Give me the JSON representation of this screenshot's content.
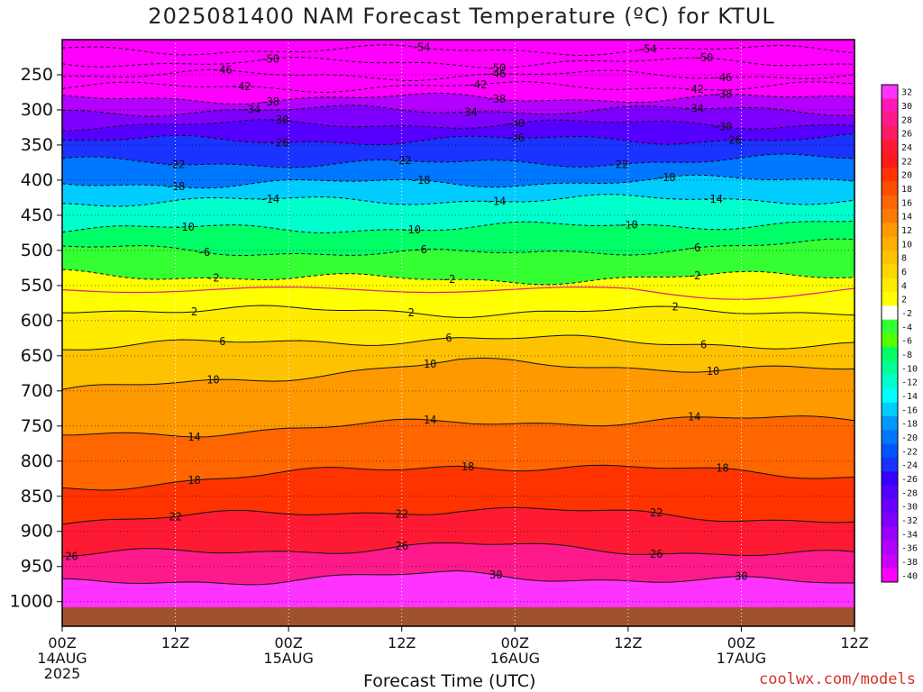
{
  "chart_data": {
    "type": "contour",
    "title": "2025081400 NAM Forecast Temperature (ºC) for KTUL",
    "xlabel": "Forecast Time (UTC)",
    "ylabel": "",
    "credit": "coolwx.com/models",
    "x_range_hours": [
      0,
      84
    ],
    "y_axis": "pressure (hPa)",
    "ylim": [
      1035,
      200
    ],
    "y_ticks": [
      250,
      300,
      350,
      400,
      450,
      500,
      550,
      600,
      650,
      700,
      750,
      800,
      850,
      900,
      950,
      1000
    ],
    "x_ticks": [
      {
        "hour": 0,
        "line1": "00Z",
        "line2": "14AUG",
        "line3": "2025"
      },
      {
        "hour": 12,
        "line1": "12Z",
        "line2": "",
        "line3": ""
      },
      {
        "hour": 24,
        "line1": "00Z",
        "line2": "15AUG",
        "line3": ""
      },
      {
        "hour": 36,
        "line1": "12Z",
        "line2": "",
        "line3": ""
      },
      {
        "hour": 48,
        "line1": "00Z",
        "line2": "16AUG",
        "line3": ""
      },
      {
        "hour": 60,
        "line1": "12Z",
        "line2": "",
        "line3": ""
      },
      {
        "hour": 72,
        "line1": "00Z",
        "line2": "17AUG",
        "line3": ""
      },
      {
        "hour": 84,
        "line1": "12Z",
        "line2": "",
        "line3": ""
      }
    ],
    "colorbar": {
      "labels": [
        "32",
        "30",
        "28",
        "26",
        "24",
        "22",
        "20",
        "18",
        "16",
        "14",
        "12",
        "10",
        "8",
        "6",
        "4",
        "2",
        "-2",
        "-4",
        "-6",
        "-8",
        "-10",
        "-12",
        "-14",
        "-16",
        "-18",
        "-20",
        "-22",
        "-24",
        "-26",
        "-28",
        "-30",
        "-32",
        "-34",
        "-36",
        "-38",
        "-40"
      ],
      "colors": [
        "#ff33ff",
        "#ff1ab3",
        "#ff1a8c",
        "#ff1a66",
        "#ff1a33",
        "#ff1a1a",
        "#ff3300",
        "#ff4d00",
        "#ff6600",
        "#ff7a00",
        "#ff9900",
        "#ffad00",
        "#ffc200",
        "#ffd700",
        "#ffeb00",
        "#ffff00",
        "#ffffff",
        "#33ff33",
        "#55ff00",
        "#00ff66",
        "#00ff99",
        "#00ffcc",
        "#00ffff",
        "#00ccff",
        "#0099ff",
        "#0077ff",
        "#0055ff",
        "#1a33ff",
        "#3300ff",
        "#5500ff",
        "#6a00ff",
        "#8000ff",
        "#9900ff",
        "#b300ff",
        "#cc00ff",
        "#ff00ff"
      ]
    },
    "contour_lines": [
      {
        "temp": -54,
        "label_x_hours": [
          38,
          62
        ],
        "levels": [
          215,
          215,
          215
        ]
      },
      {
        "temp": -50,
        "label_x_hours": [
          22,
          46,
          68
        ],
        "levels": [
          232,
          233,
          232
        ]
      },
      {
        "temp": -46,
        "label_x_hours": [
          17,
          46,
          70
        ],
        "levels": [
          250,
          251,
          250
        ]
      },
      {
        "temp": -42,
        "label_x_hours": [
          19,
          44,
          67
        ],
        "levels": [
          268,
          267,
          266
        ]
      },
      {
        "temp": -38,
        "label_x_hours": [
          22,
          46,
          70
        ],
        "levels": [
          285,
          283,
          284
        ]
      },
      {
        "temp": -34,
        "label_x_hours": [
          20,
          43,
          67
        ],
        "levels": [
          302,
          300,
          301
        ]
      },
      {
        "temp": -30,
        "label_x_hours": [
          23,
          48,
          70
        ],
        "levels": [
          322,
          320,
          320
        ]
      },
      {
        "temp": -26,
        "label_x_hours": [
          23,
          48,
          71
        ],
        "levels": [
          344,
          343,
          341
        ]
      },
      {
        "temp": -22,
        "label_x_hours": [
          12,
          36,
          59
        ],
        "levels": [
          374,
          377,
          369
        ]
      },
      {
        "temp": -18,
        "label_x_hours": [
          12,
          38,
          64
        ],
        "levels": [
          405,
          404,
          398
        ]
      },
      {
        "temp": -14,
        "label_x_hours": [
          22,
          46,
          69
        ],
        "levels": [
          431,
          428,
          427
        ]
      },
      {
        "temp": -10,
        "label_x_hours": [
          13,
          37,
          60
        ],
        "levels": [
          470,
          468,
          460
        ]
      },
      {
        "temp": -6,
        "label_x_hours": [
          15,
          38,
          67
        ],
        "levels": [
          497,
          506,
          490
        ]
      },
      {
        "temp": -2,
        "label_x_hours": [
          16,
          41,
          67
        ],
        "levels": [
          533,
          543,
          535
        ]
      },
      {
        "temp": 2,
        "label_x_hours": [
          14,
          37,
          65
        ],
        "levels": [
          583,
          588,
          586
        ]
      },
      {
        "temp": 6,
        "label_x_hours": [
          17,
          41,
          68
        ],
        "levels": [
          638,
          625,
          636
        ]
      },
      {
        "temp": 10,
        "label_x_hours": [
          16,
          39,
          69
        ],
        "levels": [
          702,
          660,
          672
        ]
      },
      {
        "temp": 14,
        "label_x_hours": [
          14,
          39,
          67
        ],
        "levels": [
          765,
          745,
          740
        ]
      },
      {
        "temp": 18,
        "label_x_hours": [
          14,
          43,
          70
        ],
        "levels": [
          838,
          805,
          820
        ]
      },
      {
        "temp": 22,
        "label_x_hours": [
          12,
          36,
          63
        ],
        "levels": [
          885,
          868,
          885
        ]
      },
      {
        "temp": 26,
        "label_x_hours": [
          1,
          36,
          63
        ],
        "levels": [
          935,
          920,
          935
        ]
      },
      {
        "temp": 30,
        "label_x_hours": [
          46,
          72
        ],
        "levels": [
          975,
          962,
          975
        ]
      }
    ]
  }
}
